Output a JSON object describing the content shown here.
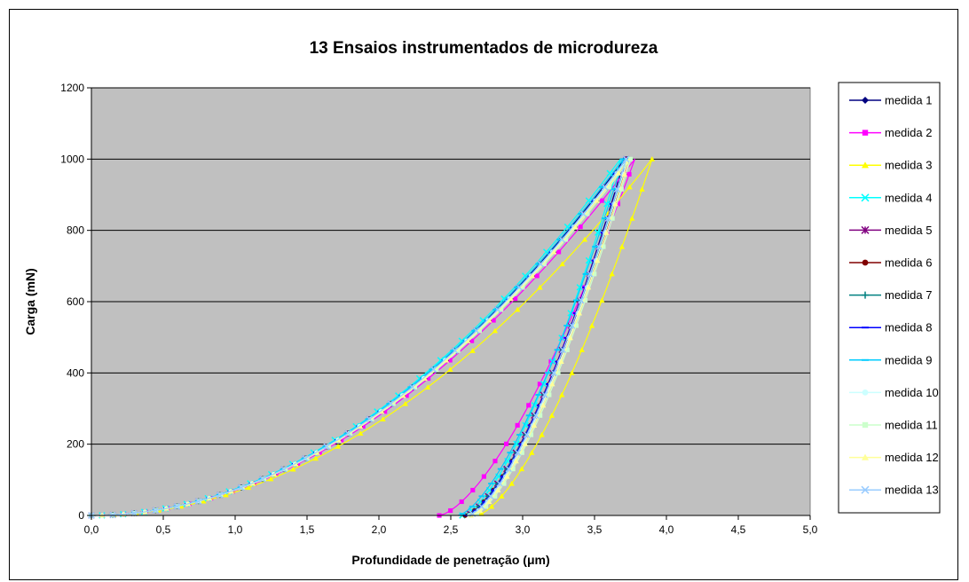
{
  "chart_data": {
    "type": "scatter",
    "title": "13 Ensaios instrumentados de microdureza",
    "xlabel": "Profundidade de penetração (μm)",
    "ylabel": "Carga (mN)",
    "xlim": [
      0,
      5
    ],
    "ylim": [
      0,
      1200
    ],
    "x_ticks": [
      "0,0",
      "0,5",
      "1,0",
      "1,5",
      "2,0",
      "2,5",
      "3,0",
      "3,5",
      "4,0",
      "4,5",
      "5,0"
    ],
    "y_ticks": [
      "0",
      "200",
      "400",
      "600",
      "800",
      "1000",
      "1200"
    ],
    "grid": "horizontal",
    "plot_background": "#c0c0c0",
    "legend_position": "right",
    "max_load": 1000,
    "series": [
      {
        "name": "medida 1",
        "color": "#000080",
        "marker": "diamond",
        "hmax": 3.71,
        "hres": 2.62,
        "a": 95
      },
      {
        "name": "medida 2",
        "color": "#ff00ff",
        "marker": "square",
        "hmax": 3.78,
        "hres": 2.42,
        "a": 50
      },
      {
        "name": "medida 3",
        "color": "#ffff00",
        "marker": "triangle",
        "hmax": 3.9,
        "hres": 2.68,
        "a": 40
      },
      {
        "name": "medida 4",
        "color": "#00ffff",
        "marker": "x",
        "hmax": 3.68,
        "hres": 2.58,
        "a": 85
      },
      {
        "name": "medida 5",
        "color": "#800080",
        "marker": "star",
        "hmax": 3.72,
        "hres": 2.6,
        "a": 90
      },
      {
        "name": "medida 6",
        "color": "#800000",
        "marker": "circle",
        "hmax": 3.74,
        "hres": 2.6,
        "a": 90
      },
      {
        "name": "medida 7",
        "color": "#008080",
        "marker": "plus",
        "hmax": 3.73,
        "hres": 2.6,
        "a": 90
      },
      {
        "name": "medida 8",
        "color": "#0000ff",
        "marker": "dash",
        "hmax": 3.72,
        "hres": 2.61,
        "a": 95
      },
      {
        "name": "medida 9",
        "color": "#00ccff",
        "marker": "dash",
        "hmax": 3.7,
        "hres": 2.55,
        "a": 60
      },
      {
        "name": "medida 10",
        "color": "#ccffff",
        "marker": "circle",
        "hmax": 3.73,
        "hres": 2.63,
        "a": 50
      },
      {
        "name": "medida 11",
        "color": "#ccffcc",
        "marker": "square",
        "hmax": 3.75,
        "hres": 2.65,
        "a": 45
      },
      {
        "name": "medida 12",
        "color": "#ffff99",
        "marker": "triangle",
        "hmax": 3.74,
        "hres": 2.64,
        "a": 45
      },
      {
        "name": "medida 13",
        "color": "#99ccff",
        "marker": "x",
        "hmax": 3.72,
        "hres": 2.62,
        "a": 50
      }
    ]
  }
}
